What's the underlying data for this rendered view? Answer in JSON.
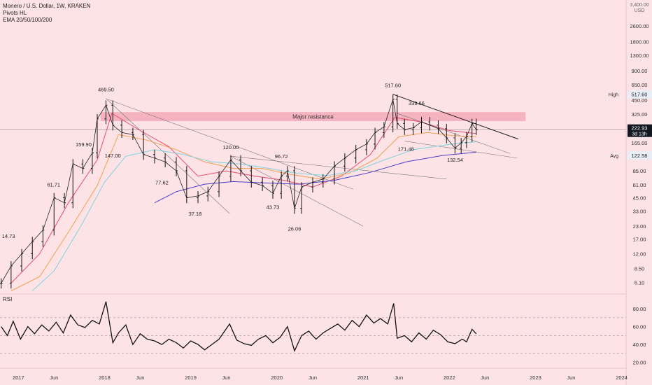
{
  "legend": {
    "symbol": "Monero / U.S. Dollar, 1W, KRAKEN",
    "indicator_1": "Pivots HL",
    "indicator_2": "EMA 20/50/100/200"
  },
  "chart_data": {
    "type": "line",
    "symbol": "Monero / U.S. Dollar, 1W, KRAKEN",
    "price_axis": {
      "scale": "log",
      "ylim": [
        4.8,
        4200
      ],
      "unit_label": [
        "3,400.00",
        "USD"
      ],
      "ticks": [
        "2600.00",
        "1800.00",
        "1300.00",
        "900.00",
        "650.00",
        "450.00",
        "325.00",
        "230.00",
        "165.00",
        "120.00",
        "85.00",
        "61.00",
        "45.00",
        "33.00",
        "23.00",
        "17.00",
        "12.00",
        "8.50",
        "6.10"
      ]
    },
    "time_axis": {
      "xlim": [
        "2016-10-15",
        "2024-01-20"
      ],
      "ticks": [
        {
          "label": "2017",
          "date": "2017-01-01"
        },
        {
          "label": "Jun",
          "date": "2017-06-01"
        },
        {
          "label": "2018",
          "date": "2018-01-01"
        },
        {
          "label": "Jun",
          "date": "2018-06-01"
        },
        {
          "label": "2019",
          "date": "2019-01-01"
        },
        {
          "label": "Jun",
          "date": "2019-06-01"
        },
        {
          "label": "2020",
          "date": "2020-01-01"
        },
        {
          "label": "Jun",
          "date": "2020-06-01"
        },
        {
          "label": "2021",
          "date": "2021-01-01"
        },
        {
          "label": "Jun",
          "date": "2021-06-01"
        },
        {
          "label": "2022",
          "date": "2022-01-01"
        },
        {
          "label": "Jun",
          "date": "2022-06-01"
        },
        {
          "label": "2023",
          "date": "2023-01-01"
        },
        {
          "label": "Jun",
          "date": "2023-06-01"
        },
        {
          "label": "2024",
          "date": "2024-01-01"
        }
      ]
    },
    "price_series": {
      "name": "XMR/USD",
      "dates": [
        "2016-10-20",
        "2016-12-01",
        "2017-01-15",
        "2017-03-01",
        "2017-04-15",
        "2017-06-01",
        "2017-07-15",
        "2017-08-20",
        "2017-10-01",
        "2017-11-10",
        "2017-12-01",
        "2018-01-07",
        "2018-02-05",
        "2018-03-15",
        "2018-05-01",
        "2018-06-15",
        "2018-08-01",
        "2018-09-15",
        "2018-11-01",
        "2018-12-15",
        "2019-02-01",
        "2019-03-15",
        "2019-05-01",
        "2019-06-20",
        "2019-08-01",
        "2019-09-15",
        "2019-11-01",
        "2019-12-15",
        "2020-01-20",
        "2020-02-15",
        "2020-03-16",
        "2020-04-15",
        "2020-06-01",
        "2020-07-15",
        "2020-09-01",
        "2020-10-15",
        "2020-12-01",
        "2021-01-15",
        "2021-02-20",
        "2021-03-30",
        "2021-05-07",
        "2021-05-25",
        "2021-06-25",
        "2021-08-01",
        "2021-09-05",
        "2021-10-10",
        "2021-11-15",
        "2021-12-20",
        "2022-01-25",
        "2022-02-20",
        "2022-03-15",
        "2022-04-07",
        "2022-04-25"
      ],
      "close": [
        6.0,
        9.0,
        12.0,
        16.0,
        21.0,
        45.0,
        40.0,
        100.0,
        90.0,
        130.0,
        290.0,
        400.0,
        250.0,
        210.0,
        200.0,
        125.0,
        115.0,
        105.0,
        85.0,
        45.0,
        47.0,
        52.0,
        75.0,
        110.0,
        85.0,
        65.0,
        60.0,
        50.0,
        75.0,
        85.0,
        35.0,
        58.0,
        65.0,
        70.0,
        95.0,
        115.0,
        140.0,
        160.0,
        210.0,
        240.0,
        460.0,
        260.0,
        225.0,
        235.0,
        270.0,
        250.0,
        230.0,
        185.0,
        145.0,
        165.0,
        190.0,
        260.0,
        225.0
      ]
    },
    "ema_series": [
      {
        "color": "#e94e6b",
        "dates": [
          "2016-12-01",
          "2017-04-01",
          "2017-08-01",
          "2017-12-01",
          "2018-02-01",
          "2018-06-01",
          "2018-10-01",
          "2019-02-01",
          "2019-06-01",
          "2019-10-01",
          "2020-02-01",
          "2020-06-01",
          "2020-10-01",
          "2021-02-01",
          "2021-05-15",
          "2021-09-01",
          "2022-01-01",
          "2022-04-25"
        ],
        "values": [
          6.0,
          12.0,
          40.0,
          110.0,
          330.0,
          220.0,
          150.0,
          75.0,
          85.0,
          75.0,
          68.0,
          58.0,
          75.0,
          125.0,
          300.0,
          270.0,
          220.0,
          205.0
        ]
      },
      {
        "color": "#f0a050",
        "dates": [
          "2016-12-01",
          "2017-04-01",
          "2017-08-01",
          "2017-12-01",
          "2018-03-01",
          "2018-07-01",
          "2018-11-01",
          "2019-03-01",
          "2019-07-01",
          "2019-11-01",
          "2020-03-01",
          "2020-07-01",
          "2020-11-01",
          "2021-03-01",
          "2021-06-01",
          "2021-10-01",
          "2022-01-15",
          "2022-04-25"
        ],
        "values": [
          5.0,
          7.0,
          20.0,
          60.0,
          200.0,
          175.0,
          140.0,
          105.0,
          90.0,
          90.0,
          78.0,
          70.0,
          80.0,
          115.0,
          190.0,
          210.0,
          195.0,
          190.0
        ]
      },
      {
        "color": "#7fd3e0",
        "dates": [
          "2017-03-01",
          "2017-06-01",
          "2017-10-01",
          "2018-01-01",
          "2018-04-01",
          "2018-08-01",
          "2018-12-01",
          "2019-04-01",
          "2019-08-01",
          "2019-12-01",
          "2020-04-01",
          "2020-08-01",
          "2020-12-01",
          "2021-04-01",
          "2021-08-01",
          "2021-12-01",
          "2022-03-01",
          "2022-04-25"
        ],
        "values": [
          5.0,
          8.0,
          25.0,
          65.0,
          120.0,
          140.0,
          125.0,
          105.0,
          100.0,
          90.0,
          80.0,
          76.0,
          85.0,
          110.0,
          140.0,
          155.0,
          165.0,
          168.0
        ]
      },
      {
        "color": "#4a3cc9",
        "dates": [
          "2018-08-01",
          "2018-11-01",
          "2019-03-01",
          "2019-07-01",
          "2019-11-01",
          "2020-04-01",
          "2020-09-01",
          "2021-02-01",
          "2021-07-01",
          "2021-12-01",
          "2022-03-01",
          "2022-04-25"
        ],
        "values": [
          40.0,
          52.0,
          62.0,
          66.0,
          64.0,
          62.0,
          68.0,
          82.0,
          105.0,
          122.0,
          128.0,
          132.0
        ]
      }
    ],
    "rsi": {
      "name": "RSI",
      "ylim": [
        15,
        95
      ],
      "ticks": [
        "80.00",
        "60.00",
        "40.00",
        "20.00"
      ],
      "bands": [
        70,
        50,
        30
      ],
      "dates": [
        "2016-10-20",
        "2016-11-15",
        "2016-12-10",
        "2017-01-10",
        "2017-02-10",
        "2017-03-10",
        "2017-04-10",
        "2017-05-10",
        "2017-06-10",
        "2017-07-10",
        "2017-08-10",
        "2017-09-10",
        "2017-10-10",
        "2017-11-10",
        "2017-12-10",
        "2018-01-07",
        "2018-02-05",
        "2018-03-01",
        "2018-04-01",
        "2018-05-01",
        "2018-06-01",
        "2018-07-01",
        "2018-08-01",
        "2018-09-01",
        "2018-10-01",
        "2018-11-01",
        "2018-12-01",
        "2019-01-01",
        "2019-02-01",
        "2019-03-01",
        "2019-04-01",
        "2019-05-01",
        "2019-06-15",
        "2019-07-15",
        "2019-08-15",
        "2019-09-15",
        "2019-10-15",
        "2019-11-15",
        "2019-12-15",
        "2020-01-15",
        "2020-02-15",
        "2020-03-16",
        "2020-04-15",
        "2020-05-15",
        "2020-06-15",
        "2020-07-15",
        "2020-08-15",
        "2020-09-15",
        "2020-10-15",
        "2020-11-15",
        "2020-12-15",
        "2021-01-15",
        "2021-02-15",
        "2021-03-15",
        "2021-04-15",
        "2021-05-10",
        "2021-05-25",
        "2021-06-25",
        "2021-07-25",
        "2021-08-25",
        "2021-09-25",
        "2021-10-25",
        "2021-11-25",
        "2021-12-25",
        "2022-01-25",
        "2022-02-25",
        "2022-03-15",
        "2022-04-07",
        "2022-04-25"
      ],
      "values": [
        60,
        50,
        66,
        46,
        60,
        52,
        62,
        55,
        65,
        53,
        73,
        62,
        59,
        67,
        63,
        88,
        42,
        53,
        62,
        40,
        52,
        46,
        44,
        40,
        46,
        42,
        36,
        44,
        40,
        34,
        40,
        46,
        63,
        45,
        41,
        39,
        46,
        50,
        42,
        48,
        60,
        33,
        50,
        55,
        46,
        53,
        58,
        63,
        56,
        67,
        60,
        73,
        64,
        69,
        63,
        86,
        47,
        50,
        43,
        53,
        46,
        56,
        51,
        43,
        41,
        46,
        43,
        57,
        52
      ]
    },
    "annotations": {
      "pivot_labels": [
        {
          "text": "469.50",
          "date": "2018-01-07",
          "value": 469.5,
          "pos": "above"
        },
        {
          "text": "159.90",
          "date": "2017-11-25",
          "value": 159.9,
          "pos": "left"
        },
        {
          "text": "147.00",
          "date": "2018-02-05",
          "value": 147.0,
          "pos": "below"
        },
        {
          "text": "61.71",
          "date": "2017-07-15",
          "value": 61.71,
          "pos": "left"
        },
        {
          "text": "14.73",
          "date": "2016-11-20",
          "value": 14.73,
          "pos": "above"
        },
        {
          "text": "77.62",
          "date": "2018-09-01",
          "value": 77.62,
          "pos": "below"
        },
        {
          "text": "37.18",
          "date": "2019-01-20",
          "value": 37.18,
          "pos": "below"
        },
        {
          "text": "120.00",
          "date": "2019-06-20",
          "value": 120.0,
          "pos": "above"
        },
        {
          "text": "43.73",
          "date": "2019-12-15",
          "value": 43.73,
          "pos": "below"
        },
        {
          "text": "96.72",
          "date": "2020-01-20",
          "value": 96.72,
          "pos": "above"
        },
        {
          "text": "26.06",
          "date": "2020-03-16",
          "value": 26.06,
          "pos": "below"
        },
        {
          "text": "517.60",
          "date": "2021-05-07",
          "value": 517.6,
          "pos": "above"
        },
        {
          "text": "339.66",
          "date": "2021-08-15",
          "value": 339.66,
          "pos": "above"
        },
        {
          "text": "171.48",
          "date": "2021-07-01",
          "value": 171.48,
          "pos": "below"
        },
        {
          "text": "132.54",
          "date": "2022-01-25",
          "value": 132.54,
          "pos": "below"
        }
      ],
      "resistance_zone": {
        "label": "Major resistance",
        "low": 275,
        "high": 340,
        "from": "2017-12-15",
        "to": "2022-11-20"
      },
      "current_price_line": 222.93,
      "trendlines": [
        {
          "color": "#1a1a1a",
          "from": [
            "2021-05-07",
            517.6
          ],
          "to": [
            "2022-10-20",
            180.0
          ]
        },
        {
          "color": "#777777",
          "from": [
            "2018-01-07",
            469.5
          ],
          "to": [
            "2019-06-15",
            31.0
          ]
        },
        {
          "color": "#777777",
          "from": [
            "2018-01-15",
            460.0
          ],
          "to": [
            "2020-11-20",
            55.0
          ]
        },
        {
          "color": "#777777",
          "from": [
            "2019-06-20",
            120.0
          ],
          "to": [
            "2021-01-01",
            23.0
          ]
        },
        {
          "color": "#777777",
          "from": [
            "2019-06-20",
            120.0
          ],
          "to": [
            "2021-12-20",
            70.0
          ]
        },
        {
          "color": "#777777",
          "from": [
            "2021-05-25",
            330.0
          ],
          "to": [
            "2022-09-15",
            128.0
          ]
        },
        {
          "color": "#777777",
          "from": [
            "2021-06-25",
            171.5
          ],
          "to": [
            "2022-10-15",
            115.0
          ]
        }
      ]
    },
    "price_badges": [
      {
        "tag": "High",
        "value_text": "517.60",
        "value": 517.6,
        "style": "light"
      },
      {
        "tag": "",
        "value_text": "222.93",
        "sub_text": "3d 13h",
        "value": 222.93,
        "style": "dark"
      },
      {
        "tag": "Avg",
        "value_text": "122.58",
        "value": 122.58,
        "style": "light"
      }
    ],
    "grid": false
  }
}
